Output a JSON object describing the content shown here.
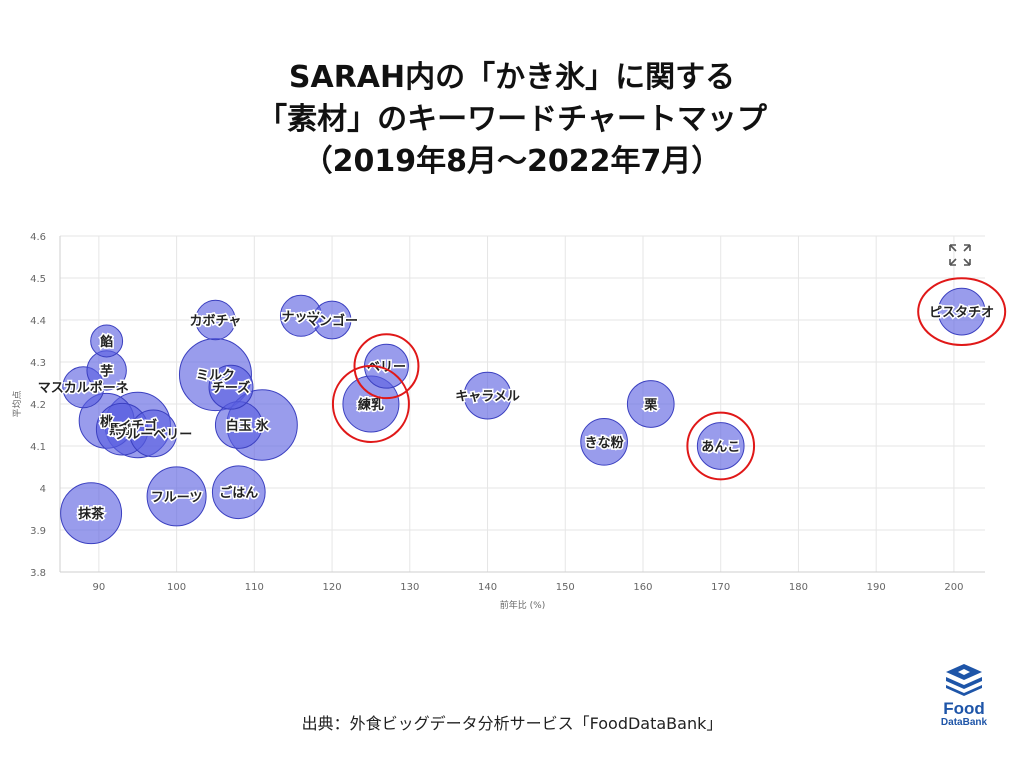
{
  "title_lines": [
    "SARAH内の「かき氷」に関する",
    "「素材」のキーワードチャートマップ",
    "（2019年8月～2022年7月）"
  ],
  "source": "出典：外食ビッグデータ分析サービス「FoodDataBank」",
  "logo": {
    "main": "Food",
    "sub": "DataBank",
    "icon": "stacked-layers-logo"
  },
  "expand_icon": "expand-arrows-icon",
  "colors": {
    "bubble_fill": "#5a5fe0",
    "bubble_stroke": "#3b40c0",
    "highlight": "#e01818",
    "grid": "#e6e6e6"
  },
  "chart_data": {
    "type": "scatter",
    "bubble": true,
    "title": "",
    "xlabel": "前年比 (%)",
    "ylabel": "平均点",
    "xlim": [
      85,
      204
    ],
    "ylim": [
      3.8,
      4.6
    ],
    "x_ticks": [
      90,
      100,
      110,
      120,
      130,
      140,
      150,
      160,
      170,
      180,
      190,
      200
    ],
    "y_ticks": [
      3.8,
      3.9,
      4,
      4.1,
      4.2,
      4.3,
      4.4,
      4.5,
      4.6
    ],
    "x_tick_labels": [
      "90",
      "100",
      "110",
      "120",
      "130",
      "140",
      "150",
      "160",
      "170",
      "180",
      "190",
      "200"
    ],
    "y_tick_labels": [
      "3.8",
      "3.9",
      "4",
      "4.1",
      "4.2",
      "4.3",
      "4.4",
      "4.5",
      "4.6"
    ],
    "grid": true,
    "points": [
      {
        "label": "ピスタチオ",
        "x": 201,
        "y": 4.42,
        "size": 1.4,
        "highlight": true
      },
      {
        "label": "カボチャ",
        "x": 105,
        "y": 4.4,
        "size": 0.9
      },
      {
        "label": "ナッツ",
        "x": 116,
        "y": 4.41,
        "size": 1.0
      },
      {
        "label": "マンゴー",
        "x": 120,
        "y": 4.4,
        "size": 0.8
      },
      {
        "label": "餡",
        "x": 91,
        "y": 4.35,
        "size": 0.5
      },
      {
        "label": "芋",
        "x": 91,
        "y": 4.28,
        "size": 0.9
      },
      {
        "label": "マスカルポーネ",
        "x": 88,
        "y": 4.24,
        "size": 1.0
      },
      {
        "label": "ミルク",
        "x": 105,
        "y": 4.27,
        "size": 4.0
      },
      {
        "label": "チーズ",
        "x": 107,
        "y": 4.24,
        "size": 1.2
      },
      {
        "label": "ベリー",
        "x": 127,
        "y": 4.29,
        "size": 1.2,
        "highlight": true
      },
      {
        "label": "練乳",
        "x": 125,
        "y": 4.2,
        "size": 2.2,
        "highlight": true
      },
      {
        "label": "キャラメル",
        "x": 140,
        "y": 4.22,
        "size": 1.4
      },
      {
        "label": "栗",
        "x": 161,
        "y": 4.2,
        "size": 1.4
      },
      {
        "label": "桃",
        "x": 91,
        "y": 4.16,
        "size": 2.1
      },
      {
        "label": "黒蜜",
        "x": 93,
        "y": 4.14,
        "size": 1.8
      },
      {
        "label": "イチゴ",
        "x": 95,
        "y": 4.15,
        "size": 3.2
      },
      {
        "label": "ブルーベリー",
        "x": 97,
        "y": 4.13,
        "size": 1.4
      },
      {
        "label": "白玉",
        "x": 108,
        "y": 4.15,
        "size": 1.4
      },
      {
        "label": "氷",
        "x": 111,
        "y": 4.15,
        "size": 3.8
      },
      {
        "label": "きな粉",
        "x": 155,
        "y": 4.11,
        "size": 1.4
      },
      {
        "label": "あんこ",
        "x": 170,
        "y": 4.1,
        "size": 1.4,
        "highlight": true
      },
      {
        "label": "フルーツ",
        "x": 100,
        "y": 3.98,
        "size": 2.5
      },
      {
        "label": "ごはん",
        "x": 108,
        "y": 3.99,
        "size": 1.9
      },
      {
        "label": "抹茶",
        "x": 89,
        "y": 3.94,
        "size": 2.7
      }
    ]
  }
}
